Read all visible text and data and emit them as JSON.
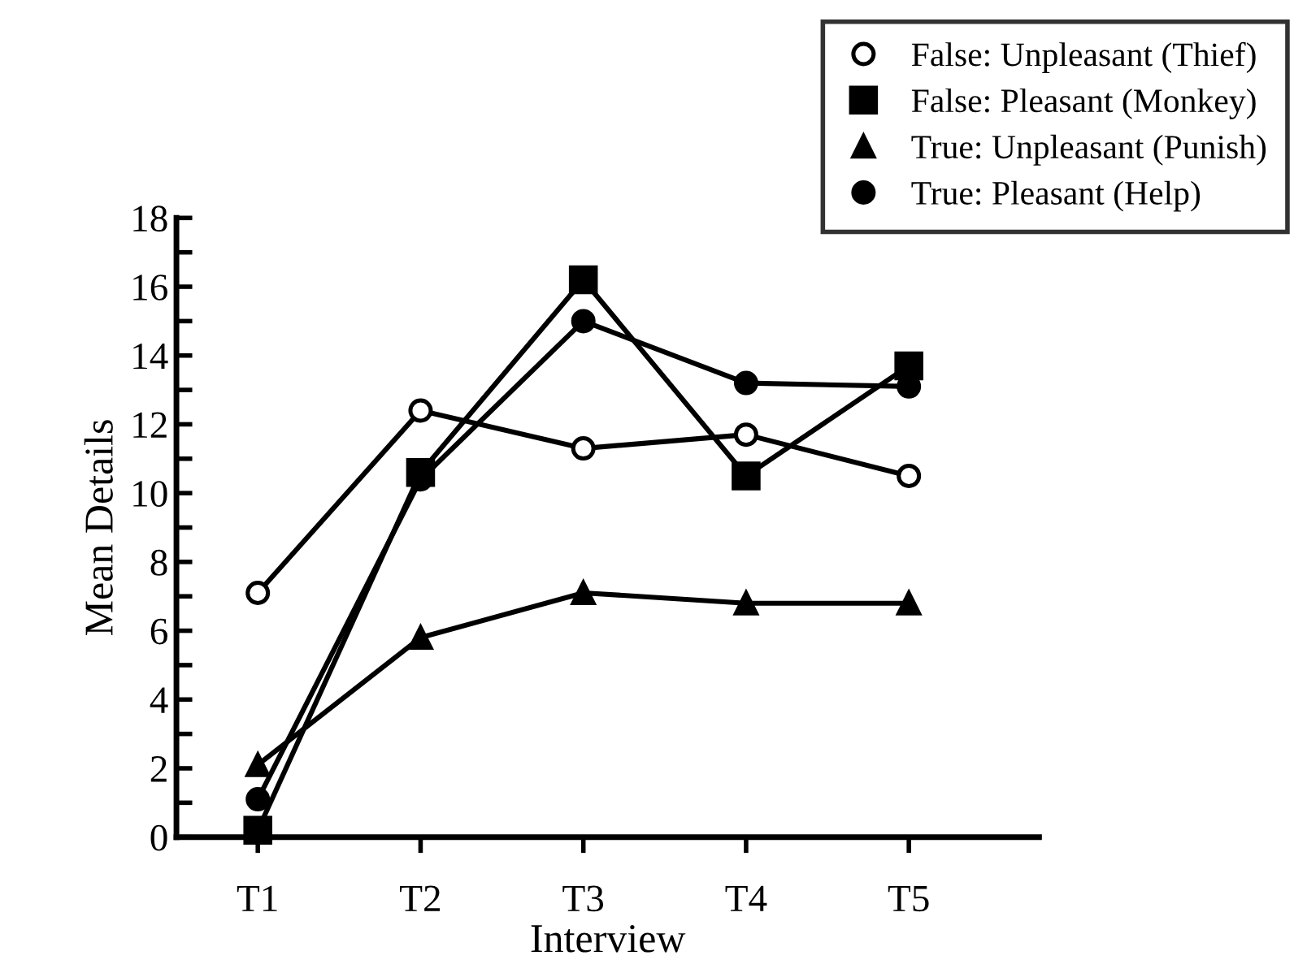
{
  "chart_data": {
    "type": "line",
    "xlabel": "Interview",
    "ylabel": "Mean Details",
    "categories": [
      "T1",
      "T2",
      "T3",
      "T4",
      "T5"
    ],
    "series": [
      {
        "name": "False: Unpleasant (Thief)",
        "color": "#000000",
        "marker": "circle",
        "values": [
          7.1,
          12.4,
          11.3,
          11.7,
          10.5
        ]
      },
      {
        "name": "False: Pleasant (Monkey)",
        "color": "#000000",
        "marker": "square",
        "values": [
          0.2,
          10.6,
          16.2,
          10.5,
          13.7
        ]
      },
      {
        "name": "True: Unpleasant (Punish)",
        "color": "#000000",
        "marker": "triangle",
        "values": [
          2.1,
          5.8,
          7.1,
          6.8,
          6.8
        ]
      },
      {
        "name": "True: Pleasant (Help)",
        "color": "#000000",
        "marker": "circle",
        "values": [
          1.1,
          10.4,
          15.0,
          13.2,
          13.1
        ]
      }
    ],
    "ylim": [
      0,
      18
    ],
    "yticks": [
      0,
      {
        "value": 1,
        "label": null
      },
      2,
      {
        "value": 3,
        "label": null
      },
      4,
      {
        "value": 5,
        "label": null
      },
      6,
      {
        "value": 7,
        "label": null
      },
      8,
      {
        "value": 9,
        "label": null
      },
      10,
      {
        "value": 11,
        "label": null
      },
      12,
      {
        "value": 13,
        "label": null
      },
      14,
      {
        "value": 15,
        "label": null
      },
      16,
      {
        "value": 17,
        "label": null
      },
      18
    ],
    "grid": false,
    "legend": "top right",
    "line_style": "solid"
  }
}
